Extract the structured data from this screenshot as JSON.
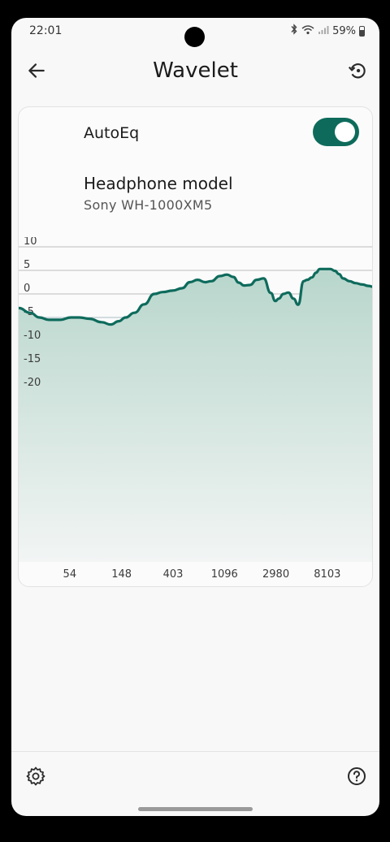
{
  "status_bar": {
    "time": "22:01",
    "battery": "59%"
  },
  "app_bar": {
    "title": "Wavelet"
  },
  "autoeq": {
    "label": "AutoEq",
    "enabled": true
  },
  "headphone": {
    "title": "Headphone model",
    "model": "Sony WH-1000XM5"
  },
  "colors": {
    "accent": "#0e6b5c",
    "fill_top": "#b8d6cc",
    "fill_bottom": "#f2f5f4"
  },
  "chart_data": {
    "type": "area",
    "y_ticks": [
      "10",
      "5",
      "0",
      "-5",
      "-10",
      "-15",
      "-20"
    ],
    "x_ticks": [
      "54",
      "148",
      "403",
      "1096",
      "2980",
      "8103"
    ],
    "ylim": [
      -25,
      10
    ],
    "xlim_hz": [
      20,
      20000
    ],
    "x": [
      20,
      25,
      30,
      36,
      45,
      55,
      65,
      80,
      100,
      120,
      140,
      160,
      190,
      230,
      280,
      330,
      400,
      480,
      560,
      650,
      750,
      850,
      1000,
      1150,
      1300,
      1450,
      1600,
      1800,
      2050,
      2350,
      2700,
      2950,
      3150,
      3450,
      3800,
      4200,
      4600,
      5100,
      5500,
      6000,
      6500,
      7000,
      7800,
      8600,
      9400,
      10200,
      11000,
      12500,
      14000,
      16000,
      18000,
      20000
    ],
    "y": [
      -3.0,
      -4.0,
      -5.0,
      -5.5,
      -5.5,
      -5.0,
      -5.0,
      -5.3,
      -6.0,
      -6.5,
      -5.8,
      -5.0,
      -4.0,
      -2.2,
      0.0,
      0.4,
      0.7,
      1.2,
      2.5,
      3.0,
      2.5,
      2.7,
      3.8,
      4.1,
      3.6,
      2.4,
      1.8,
      1.9,
      3.0,
      3.3,
      0.2,
      -1.5,
      -1.0,
      0.0,
      0.3,
      -1.0,
      -2.3,
      2.7,
      3.0,
      3.5,
      4.5,
      5.3,
      5.3,
      5.3,
      4.9,
      4.2,
      3.3,
      2.7,
      2.3,
      2.0,
      1.7,
      1.5
    ]
  }
}
